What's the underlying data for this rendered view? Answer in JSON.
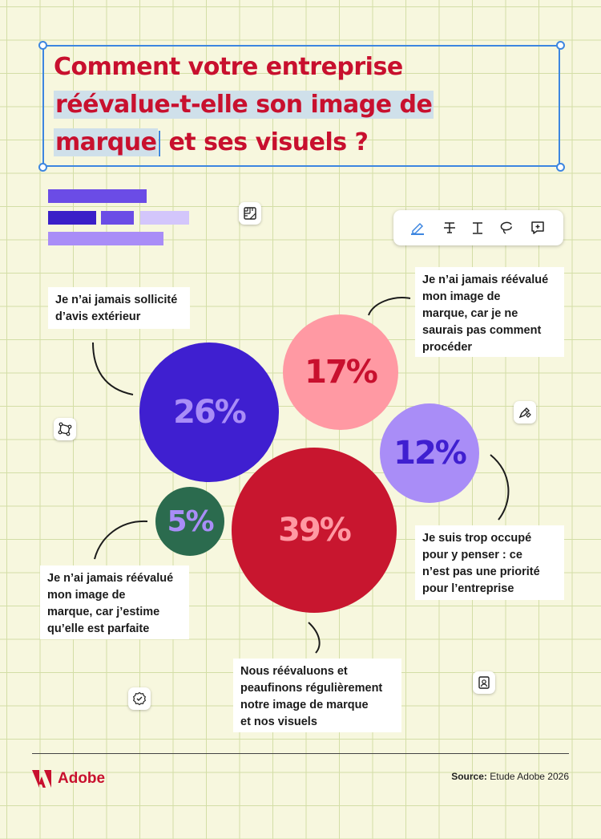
{
  "title": {
    "line1": "Comment votre entreprise",
    "line2": "réévalue-t-elle son image de",
    "line3_highlight": "marque",
    "line3_rest": "et ses visuels ?"
  },
  "colors": {
    "red": "#c8102e",
    "blue": "#3d86e0",
    "indigo": "#3f1fd0",
    "pink": "#ff99a3",
    "lavender": "#a98df7",
    "green": "#2b6b4e",
    "crimson": "#c8162f"
  },
  "icons": {
    "toolbar": [
      "highlighter-icon",
      "strikethrough-icon",
      "text-icon",
      "lasso-icon",
      "comment-icon"
    ],
    "floating": [
      "ruler-icon",
      "bezier-icon",
      "pen-icon",
      "badge-check-icon",
      "id-card-icon"
    ]
  },
  "chart_data": {
    "type": "bubble",
    "title": "Comment votre entreprise réévalue-t-elle son image de marque et ses visuels ?",
    "series": [
      {
        "label": "Je n'ai jamais sollicité d'avis extérieur",
        "value": 26,
        "display": "26%",
        "color": "#3f1fd0",
        "text_color": "#a98df7"
      },
      {
        "label": "Je n'ai jamais réévalué mon image de marque, car je ne saurais pas comment procéder",
        "value": 17,
        "display": "17%",
        "color": "#ff99a3",
        "text_color": "#c8102e"
      },
      {
        "label": "Je suis trop occupé pour y penser : ce n'est pas une priorité pour l'entreprise",
        "value": 12,
        "display": "12%",
        "color": "#a98df7",
        "text_color": "#3f1fd0"
      },
      {
        "label": "Nous réévaluons et peaufinons régulièrement notre image de marque et nos visuels",
        "value": 39,
        "display": "39%",
        "color": "#c8162f",
        "text_color": "#ff99a3"
      },
      {
        "label": "Je n'ai jamais réévalué mon image de marque, car j'estime qu'elle est parfaite",
        "value": 5,
        "display": "5%",
        "color": "#2b6b4e",
        "text_color": "#a98df7"
      }
    ]
  },
  "labels": {
    "avis": "Je n’ai jamais sollicité\nd’avis extérieur",
    "procéder": "Je n’ai jamais réévalué\nmon image de\nmarque, car je ne\nsaurais pas comment\nprocéder",
    "occupé": "Je suis trop occupé\npour y penser : ce\nn’est pas une priorité\npour l’entreprise",
    "parfaite": "Je n’ai jamais réévalué\nmon image de\nmarque, car j’estime\nqu’elle est parfaite",
    "réévaluons": "Nous réévaluons et\npeaufinons régulièrement\nnotre image de marque\net nos visuels"
  },
  "footer": {
    "brand": "Adobe",
    "source_label": "Source:",
    "source_text": "Etude Adobe 2026"
  }
}
